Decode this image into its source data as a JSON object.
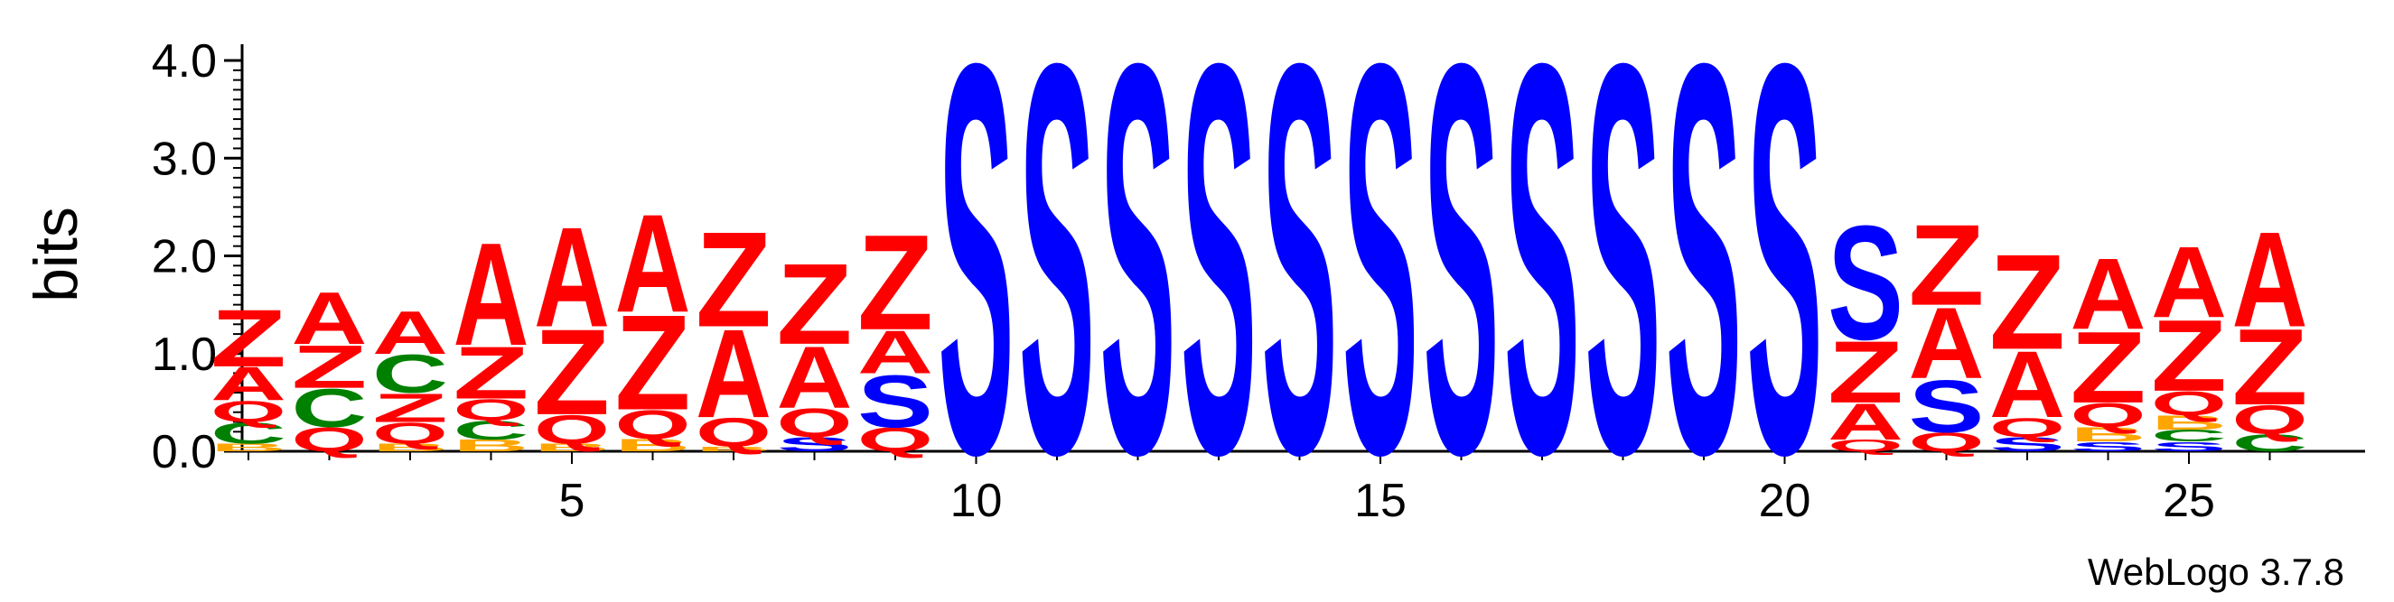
{
  "chart_data": {
    "type": "sequence-logo",
    "ylabel": "bits",
    "ylim": [
      0,
      4.0
    ],
    "y_ticks": [
      "0.0",
      "1.0",
      "2.0",
      "3.0",
      "4.0"
    ],
    "x_tick_labels": [
      "5",
      "10",
      "15",
      "20",
      "25"
    ],
    "x_tick_positions": [
      5,
      10,
      15,
      20,
      25
    ],
    "positions": 26,
    "colors": {
      "A": "#ff0000",
      "Z": "#ff0000",
      "Q": "#ff0000",
      "S": "#0000ff",
      "C": "#008000",
      "B": "#ffa500"
    },
    "columns": [
      {
        "pos": 1,
        "stack": [
          [
            "B",
            0.08
          ],
          [
            "C",
            0.22
          ],
          [
            "Q",
            0.22
          ],
          [
            "A",
            0.35
          ],
          [
            "Z",
            0.6
          ]
        ]
      },
      {
        "pos": 2,
        "stack": [
          [
            "Q",
            0.25
          ],
          [
            "C",
            0.4
          ],
          [
            "Z",
            0.45
          ],
          [
            "A",
            0.55
          ]
        ]
      },
      {
        "pos": 3,
        "stack": [
          [
            "B",
            0.08
          ],
          [
            "Q",
            0.22
          ],
          [
            "Z",
            0.3
          ],
          [
            "C",
            0.4
          ],
          [
            "A",
            0.45
          ]
        ]
      },
      {
        "pos": 4,
        "stack": [
          [
            "B",
            0.12
          ],
          [
            "C",
            0.2
          ],
          [
            "Q",
            0.22
          ],
          [
            "Z",
            0.55
          ],
          [
            "A",
            1.08
          ]
        ]
      },
      {
        "pos": 5,
        "stack": [
          [
            "B",
            0.08
          ],
          [
            "Q",
            0.3
          ],
          [
            "Z",
            0.9
          ],
          [
            "A",
            1.05
          ]
        ]
      },
      {
        "pos": 6,
        "stack": [
          [
            "B",
            0.13
          ],
          [
            "Q",
            0.3
          ],
          [
            "Z",
            1.0
          ],
          [
            "A",
            1.03
          ]
        ]
      },
      {
        "pos": 7,
        "stack": [
          [
            "B",
            0.05
          ],
          [
            "Q",
            0.3
          ],
          [
            "A",
            0.93
          ],
          [
            "Z",
            1.0
          ]
        ]
      },
      {
        "pos": 8,
        "stack": [
          [
            "S",
            0.15
          ],
          [
            "Q",
            0.3
          ],
          [
            "A",
            0.65
          ],
          [
            "Z",
            0.85
          ]
        ]
      },
      {
        "pos": 9,
        "stack": [
          [
            "Q",
            0.25
          ],
          [
            "S",
            0.55
          ],
          [
            "A",
            0.45
          ],
          [
            "Z",
            1.0
          ]
        ]
      },
      {
        "pos": 10,
        "stack": [
          [
            "S",
            4.1
          ]
        ]
      },
      {
        "pos": 11,
        "stack": [
          [
            "S",
            4.1
          ]
        ]
      },
      {
        "pos": 12,
        "stack": [
          [
            "S",
            4.1
          ]
        ]
      },
      {
        "pos": 13,
        "stack": [
          [
            "S",
            4.1
          ]
        ]
      },
      {
        "pos": 14,
        "stack": [
          [
            "S",
            4.1
          ]
        ]
      },
      {
        "pos": 15,
        "stack": [
          [
            "S",
            4.1
          ]
        ]
      },
      {
        "pos": 16,
        "stack": [
          [
            "S",
            4.1
          ]
        ]
      },
      {
        "pos": 17,
        "stack": [
          [
            "S",
            4.1
          ]
        ]
      },
      {
        "pos": 18,
        "stack": [
          [
            "S",
            4.1
          ]
        ]
      },
      {
        "pos": 19,
        "stack": [
          [
            "S",
            4.1
          ]
        ]
      },
      {
        "pos": 20,
        "stack": [
          [
            "S",
            4.1
          ]
        ]
      },
      {
        "pos": 21,
        "stack": [
          [
            "Q",
            0.12
          ],
          [
            "A",
            0.38
          ],
          [
            "Z",
            0.65
          ],
          [
            "S",
            1.2
          ]
        ]
      },
      {
        "pos": 22,
        "stack": [
          [
            "Q",
            0.2
          ],
          [
            "S",
            0.55
          ],
          [
            "A",
            0.75
          ],
          [
            "Z",
            0.85
          ]
        ]
      },
      {
        "pos": 23,
        "stack": [
          [
            "S",
            0.15
          ],
          [
            "Q",
            0.2
          ],
          [
            "A",
            0.7
          ],
          [
            "Z",
            1.0
          ]
        ]
      },
      {
        "pos": 24,
        "stack": [
          [
            "S",
            0.1
          ],
          [
            "B",
            0.15
          ],
          [
            "Q",
            0.25
          ],
          [
            "Z",
            0.75
          ],
          [
            "A",
            0.75
          ]
        ]
      },
      {
        "pos": 25,
        "stack": [
          [
            "S",
            0.1
          ],
          [
            "C",
            0.12
          ],
          [
            "B",
            0.15
          ],
          [
            "Q",
            0.25
          ],
          [
            "Z",
            0.75
          ],
          [
            "A",
            0.75
          ]
        ]
      },
      {
        "pos": 26,
        "stack": [
          [
            "C",
            0.18
          ],
          [
            "Q",
            0.3
          ],
          [
            "Z",
            0.8
          ],
          [
            "A",
            1.0
          ]
        ]
      }
    ]
  },
  "footer": {
    "credit": "WebLogo 3.7.8"
  }
}
